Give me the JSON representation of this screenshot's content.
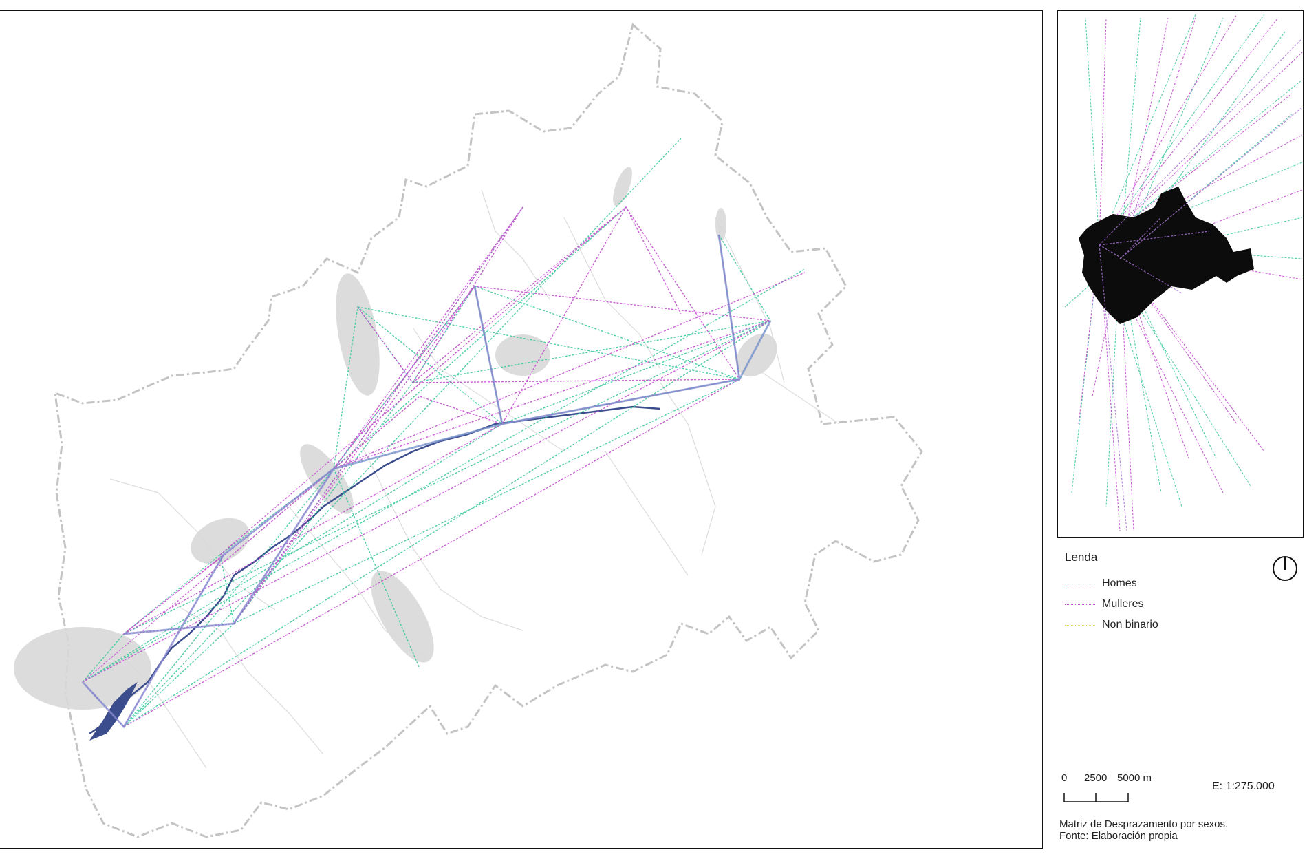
{
  "legend": {
    "title": "Lenda",
    "items": [
      {
        "label": "Homes",
        "color": "#3fc9a0"
      },
      {
        "label": "Mulleres",
        "color": "#c44fd0"
      },
      {
        "label": "Non binario",
        "color": "#e6d84a"
      }
    ]
  },
  "scale": {
    "labels": [
      "0",
      "2500",
      "5000 m"
    ],
    "ratio": "E: 1:275.000"
  },
  "caption": {
    "line1": "Matriz de Desprazamento por sexos.",
    "line2": "Fonte: Elaboración propia"
  },
  "colors": {
    "homes": "#3fc9a0",
    "mulleres": "#c44fd0",
    "mixed": "#7f8ccf",
    "river": "#3b4d8c",
    "boundary": "#c4c4c4",
    "inner_boundary": "#dddddd",
    "hotspot": "#d7d7d7",
    "inset_area": "#0c0c0c",
    "frame": "#111111"
  },
  "icons": {
    "north": "north-arrow-icon"
  }
}
